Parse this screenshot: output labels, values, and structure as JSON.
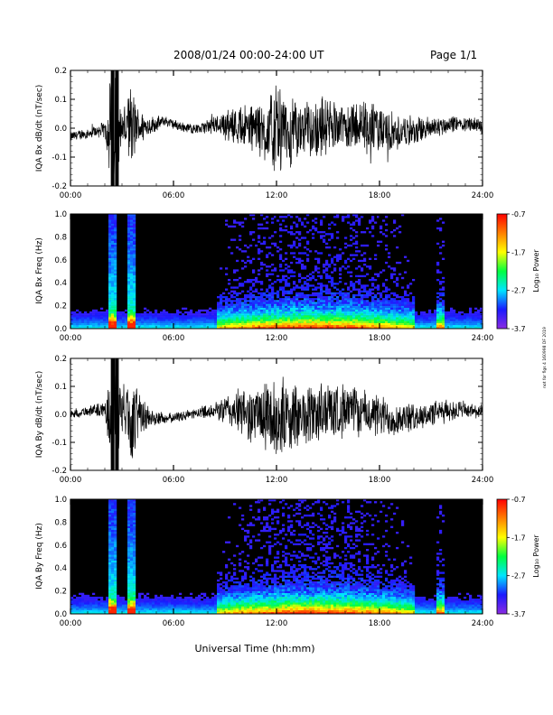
{
  "header": {
    "date_range": "2008/01/24  00:00-24:00 UT",
    "page": "Page 1/1"
  },
  "xlabel": "Universal Time (hh:mm)",
  "side_note": "not for flgs 4 160998 DF 2019",
  "colors": {
    "trace": "#000000",
    "spectrogram_background": "#000000",
    "colorbar": [
      "#8a2be2",
      "#1a1aff",
      "#00e5ff",
      "#00ff40",
      "#ffff00",
      "#ff8000",
      "#ff0000"
    ]
  },
  "chart_data": [
    {
      "type": "line",
      "ylabel": "IQA Bx dB/dt (nT/sec)",
      "x_ticks": [
        "00:00",
        "06:00",
        "12:00",
        "18:00",
        "24:00"
      ],
      "y_ticks": [
        "0.2",
        "0.1",
        "0.0",
        "-0.1",
        "-0.2"
      ],
      "xlim": [
        0,
        24
      ],
      "ylim": [
        -0.2,
        0.2
      ],
      "envelope": {
        "x_hours": [
          0,
          1,
          2,
          2.4,
          2.6,
          3.0,
          3.5,
          3.9,
          4.5,
          5.5,
          6.5,
          7.5,
          8.5,
          9.5,
          10.5,
          11.5,
          12.0,
          12.5,
          13.5,
          14.5,
          15.5,
          16.5,
          17.5,
          18.5,
          19.5,
          20.5,
          21.5,
          22.5,
          23.5,
          24
        ],
        "amplitude": [
          0.02,
          0.02,
          0.03,
          0.25,
          0.25,
          0.05,
          0.18,
          0.08,
          0.04,
          0.02,
          0.02,
          0.02,
          0.04,
          0.07,
          0.1,
          0.13,
          0.19,
          0.15,
          0.1,
          0.12,
          0.09,
          0.1,
          0.11,
          0.08,
          0.06,
          0.05,
          0.04,
          0.03,
          0.03,
          0.03
        ],
        "offset": [
          -0.03,
          -0.03,
          -0.02,
          0,
          0,
          0,
          0,
          0.01,
          0.02,
          0.04,
          0.01,
          -0.01,
          0,
          0,
          0,
          0,
          0,
          0,
          0,
          0,
          0,
          0,
          0,
          0,
          0,
          0,
          0,
          0,
          0,
          0
        ]
      }
    },
    {
      "type": "heatmap",
      "ylabel": "IQA Bx Freq (Hz)",
      "colorbar_label": "Log₁₀ Power",
      "colorbar_ticks": [
        "-0.7",
        "-1.7",
        "-2.7",
        "-3.7"
      ],
      "clim": [
        -3.7,
        -0.7
      ],
      "x_ticks": [
        "00:00",
        "06:00",
        "12:00",
        "18:00",
        "24:00"
      ],
      "y_ticks": [
        "1.0",
        "0.8",
        "0.6",
        "0.4",
        "0.2",
        "0.0"
      ],
      "xlim": [
        0,
        24
      ],
      "ylim": [
        0,
        1.0
      ],
      "events_hours": [
        2.5,
        3.6,
        12.7,
        21.6
      ],
      "activity_window_hours": [
        8.5,
        20
      ]
    },
    {
      "type": "line",
      "ylabel": "IQA By dB/dt (nT/sec)",
      "x_ticks": [
        "00:00",
        "06:00",
        "12:00",
        "18:00",
        "24:00"
      ],
      "y_ticks": [
        "0.2",
        "0.1",
        "0.0",
        "-0.1",
        "-0.2"
      ],
      "xlim": [
        0,
        24
      ],
      "ylim": [
        -0.2,
        0.2
      ],
      "envelope": {
        "x_hours": [
          0,
          1,
          2,
          2.4,
          2.6,
          3.0,
          3.5,
          3.9,
          4.5,
          5.5,
          6.5,
          7.5,
          8.5,
          9.5,
          10.5,
          11.5,
          12.0,
          12.5,
          13.5,
          14.5,
          15.5,
          16.5,
          17.5,
          18.5,
          19.5,
          20.5,
          21.5,
          22.5,
          23.5,
          24
        ],
        "amplitude": [
          0.02,
          0.02,
          0.03,
          0.25,
          0.25,
          0.08,
          0.22,
          0.1,
          0.05,
          0.02,
          0.02,
          0.02,
          0.04,
          0.08,
          0.11,
          0.14,
          0.17,
          0.15,
          0.12,
          0.13,
          0.11,
          0.1,
          0.09,
          0.08,
          0.06,
          0.05,
          0.05,
          0.04,
          0.03,
          0.03
        ],
        "offset": [
          0,
          0,
          0,
          0,
          0,
          0,
          0,
          0,
          0,
          0,
          0,
          0,
          0,
          0,
          0,
          0,
          0,
          0,
          0,
          0,
          0,
          0,
          0,
          0,
          0,
          0,
          0,
          0,
          0,
          0
        ]
      }
    },
    {
      "type": "heatmap",
      "ylabel": "IQA By Freq (Hz)",
      "colorbar_label": "Log₁₀ Power",
      "colorbar_ticks": [
        "-0.7",
        "-1.7",
        "-2.7",
        "-3.7"
      ],
      "clim": [
        -3.7,
        -0.7
      ],
      "x_ticks": [
        "00:00",
        "06:00",
        "12:00",
        "18:00",
        "24:00"
      ],
      "y_ticks": [
        "1.0",
        "0.8",
        "0.6",
        "0.4",
        "0.2",
        "0.0"
      ],
      "xlim": [
        0,
        24
      ],
      "ylim": [
        0,
        1.0
      ],
      "events_hours": [
        2.5,
        3.6,
        12.7,
        21.6
      ],
      "activity_window_hours": [
        8.5,
        20
      ]
    }
  ]
}
